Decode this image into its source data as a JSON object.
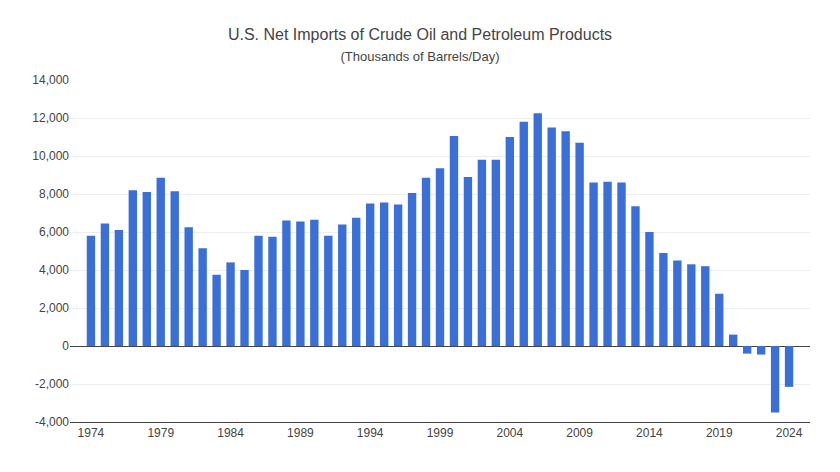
{
  "chart_data": {
    "type": "bar",
    "title": "U.S. Net Imports of Crude Oil and Petroleum Products",
    "subtitle": "(Thousands of Barrels/Day)",
    "x": [
      1974,
      1975,
      1976,
      1977,
      1978,
      1979,
      1980,
      1981,
      1982,
      1983,
      1984,
      1985,
      1986,
      1987,
      1988,
      1989,
      1990,
      1991,
      1992,
      1993,
      1994,
      1995,
      1996,
      1997,
      1998,
      1999,
      2000,
      2001,
      2002,
      2003,
      2004,
      2005,
      2006,
      2007,
      2008,
      2009,
      2010,
      2011,
      2012,
      2013,
      2014,
      2015,
      2016,
      2017,
      2018,
      2019,
      2020,
      2021,
      2022,
      2023,
      2024
    ],
    "values": [
      5800,
      6450,
      6100,
      8200,
      8100,
      8850,
      8150,
      6250,
      5150,
      3750,
      4400,
      4000,
      5800,
      5750,
      6600,
      6550,
      6650,
      5800,
      6400,
      6750,
      7500,
      7550,
      7450,
      8050,
      8850,
      9350,
      11050,
      8900,
      9800,
      9800,
      11000,
      11800,
      12250,
      11500,
      11300,
      10700,
      8600,
      8650,
      8600,
      7350,
      6000,
      4900,
      4500,
      4300,
      4200,
      2750,
      600,
      -400,
      -450,
      -3500,
      -2150
    ],
    "color": "#3a6fd8",
    "xlim": [
      1972.5,
      2025.5
    ],
    "xticks": [
      1974,
      1979,
      1984,
      1989,
      1994,
      1999,
      2004,
      2009,
      2014,
      2019,
      2024
    ],
    "ylim": [
      -4000,
      14000
    ],
    "yticks": [
      {
        "value": -4000,
        "label": "-4,000"
      },
      {
        "value": -2000,
        "label": "-2,000"
      },
      0,
      {
        "value": 2000,
        "label": "2,000"
      },
      {
        "value": 4000,
        "label": "4,000"
      },
      {
        "value": 6000,
        "label": "6,000"
      },
      {
        "value": 8000,
        "label": "8,000"
      },
      {
        "value": 10000,
        "label": "10,000"
      },
      {
        "value": 12000,
        "label": "12,000"
      },
      {
        "value": 14000,
        "label": "14,000"
      }
    ],
    "grid": true
  }
}
